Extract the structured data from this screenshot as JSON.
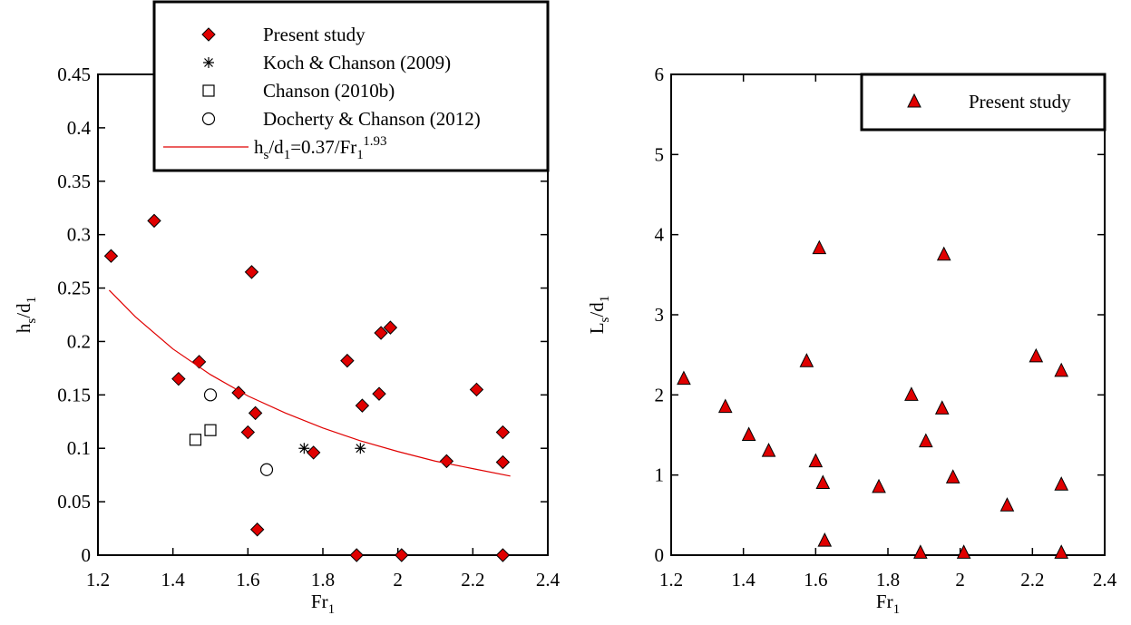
{
  "chart_data": [
    {
      "type": "scatter",
      "xlabel": [
        "Fr",
        "1"
      ],
      "xlabel_format": [
        "",
        "sub"
      ],
      "ylabel": [
        "h",
        "s",
        "/d",
        "1"
      ],
      "ylabel_format": [
        "",
        "sub",
        "",
        "sub"
      ],
      "xlim": [
        1.2,
        2.4
      ],
      "xticks": [
        1.2,
        1.4,
        1.6,
        1.8,
        2,
        2.2,
        2.4
      ],
      "ylim": [
        0,
        0.45
      ],
      "yticks": [
        0,
        0.05,
        0.1,
        0.15,
        0.2,
        0.25,
        0.3,
        0.35,
        0.4,
        0.45
      ],
      "legend": "top-right",
      "series": [
        {
          "name": "Present study",
          "marker": "diamond",
          "color": "#e00000",
          "x": [
            1.235,
            1.35,
            1.415,
            1.47,
            1.575,
            1.6,
            1.61,
            1.62,
            1.625,
            1.775,
            1.865,
            1.89,
            1.905,
            1.95,
            1.955,
            1.98,
            2.01,
            2.13,
            2.21,
            2.28,
            2.28,
            2.28
          ],
          "values": [
            0.28,
            0.313,
            0.165,
            0.181,
            0.152,
            0.115,
            0.265,
            0.133,
            0.024,
            0.096,
            0.182,
            0,
            0.14,
            0.151,
            0.208,
            0.213,
            0,
            0.088,
            0.155,
            0.115,
            0.087,
            0
          ]
        },
        {
          "name": "Koch & Chanson (2009)",
          "marker": "star",
          "color": "#000000",
          "x": [
            1.75,
            1.9
          ],
          "values": [
            0.1,
            0.1
          ]
        },
        {
          "name": "Chanson (2010b)",
          "marker": "square",
          "color": "#000000",
          "x": [
            1.46,
            1.5
          ],
          "values": [
            0.108,
            0.117
          ]
        },
        {
          "name": "Docherty & Chanson (2012)",
          "marker": "circle",
          "color": "#000000",
          "x": [
            1.5,
            1.65
          ],
          "values": [
            0.15,
            0.08
          ]
        },
        {
          "name": [
            "h",
            "s",
            "/d",
            "1",
            "=0.37/Fr",
            "1",
            "1.93"
          ],
          "name_format": [
            "",
            "sub",
            "",
            "sub",
            "",
            "sub",
            "sup"
          ],
          "marker": "line",
          "color": "#e00000",
          "x": [
            1.23,
            1.3,
            1.4,
            1.5,
            1.6,
            1.7,
            1.8,
            1.9,
            2.0,
            2.1,
            2.2,
            2.3
          ],
          "values": [
            0.248,
            0.223,
            0.193,
            0.169,
            0.149,
            0.133,
            0.119,
            0.107,
            0.097,
            0.088,
            0.081,
            0.074
          ]
        }
      ]
    },
    {
      "type": "scatter",
      "xlabel": [
        "Fr",
        "1"
      ],
      "xlabel_format": [
        "",
        "sub"
      ],
      "ylabel": [
        "L",
        "s",
        "/d",
        "1"
      ],
      "ylabel_format": [
        "",
        "sub",
        "",
        "sub"
      ],
      "xlim": [
        1.2,
        2.4
      ],
      "xticks": [
        1.2,
        1.4,
        1.6,
        1.8,
        2,
        2.2,
        2.4
      ],
      "ylim": [
        0,
        6
      ],
      "yticks": [
        0,
        1,
        2,
        3,
        4,
        5,
        6
      ],
      "legend": "top-right",
      "series": [
        {
          "name": "Present study",
          "marker": "triangle",
          "color": "#e00000",
          "x": [
            1.235,
            1.35,
            1.415,
            1.47,
            1.575,
            1.6,
            1.61,
            1.62,
            1.625,
            1.775,
            1.865,
            1.89,
            1.905,
            1.95,
            1.955,
            1.98,
            2.01,
            2.13,
            2.21,
            2.28,
            2.28,
            2.28
          ],
          "values": [
            2.2,
            1.85,
            1.5,
            1.3,
            2.42,
            1.17,
            3.83,
            0.9,
            0.18,
            0.85,
            2.0,
            0.03,
            1.42,
            1.83,
            3.75,
            0.97,
            0.03,
            0.62,
            2.48,
            2.3,
            0.88,
            0.03
          ]
        }
      ]
    }
  ]
}
